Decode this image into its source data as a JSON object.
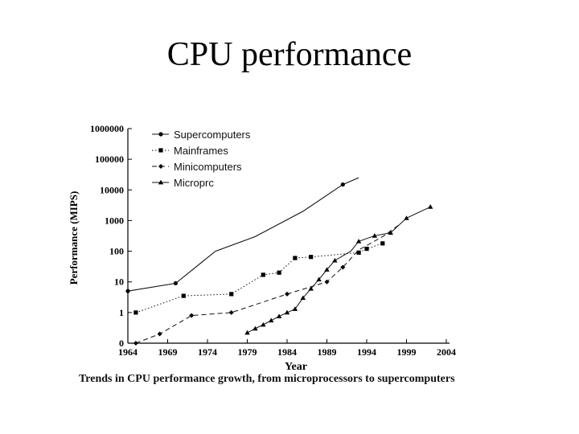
{
  "slide": {
    "title": "CPU performance",
    "caption": "Trends in CPU performance growth, from microprocessors to supercomputers"
  },
  "chart_data": {
    "type": "line",
    "xlabel": "Year",
    "ylabel": "Performance (MIPS)",
    "xlim": [
      1964,
      2004
    ],
    "x_ticks": [
      1964,
      1969,
      1974,
      1979,
      1984,
      1989,
      1994,
      1999,
      2004
    ],
    "y_scale": "log",
    "y_ticks": [
      {
        "value": 0,
        "label": "0"
      },
      {
        "value": 1,
        "label": "1"
      },
      {
        "value": 10,
        "label": "10"
      },
      {
        "value": 100,
        "label": "100"
      },
      {
        "value": 1000,
        "label": "1000"
      },
      {
        "value": 10000,
        "label": "10000"
      },
      {
        "value": 100000,
        "label": "100000"
      },
      {
        "value": 1000000,
        "label": "1000000"
      }
    ],
    "legend_position": "top-left",
    "series": [
      {
        "name": "Supercomputers",
        "line_style": "solid",
        "marker": "circle",
        "points": [
          [
            1964,
            5
          ],
          [
            1970,
            9
          ],
          [
            1975,
            100
          ],
          [
            1980,
            300
          ],
          [
            1986,
            2000
          ],
          [
            1991,
            15000
          ],
          [
            1993,
            25000
          ]
        ],
        "markers": [
          [
            1964,
            5
          ],
          [
            1970,
            9
          ],
          [
            1991,
            15000
          ]
        ]
      },
      {
        "name": "Mainframes",
        "line_style": "dotted",
        "marker": "square",
        "points": [
          [
            1965,
            1
          ],
          [
            1971,
            3.5
          ],
          [
            1977,
            4
          ],
          [
            1981,
            17
          ],
          [
            1983,
            20
          ],
          [
            1985,
            60
          ],
          [
            1987,
            65
          ],
          [
            1993,
            90
          ],
          [
            1994,
            120
          ],
          [
            1996,
            180
          ]
        ],
        "markers": [
          [
            1965,
            1
          ],
          [
            1971,
            3.5
          ],
          [
            1977,
            4
          ],
          [
            1981,
            17
          ],
          [
            1983,
            20
          ],
          [
            1985,
            60
          ],
          [
            1987,
            65
          ],
          [
            1993,
            90
          ],
          [
            1994,
            120
          ],
          [
            1996,
            180
          ]
        ]
      },
      {
        "name": "Minicomputers",
        "line_style": "dashed",
        "marker": "diamond",
        "points": [
          [
            1965,
            0.1
          ],
          [
            1968,
            0.2
          ],
          [
            1972,
            0.8
          ],
          [
            1977,
            1
          ],
          [
            1984,
            4
          ],
          [
            1989,
            10
          ],
          [
            1991,
            30
          ],
          [
            1993,
            110
          ],
          [
            1996,
            300
          ],
          [
            1998,
            700
          ]
        ],
        "markers": [
          [
            1965,
            0.1
          ],
          [
            1968,
            0.2
          ],
          [
            1972,
            0.8
          ],
          [
            1977,
            1
          ],
          [
            1984,
            4
          ],
          [
            1989,
            10
          ],
          [
            1991,
            30
          ]
        ]
      },
      {
        "name": "Microprc",
        "line_style": "solid-thin",
        "marker": "triangle",
        "points": [
          [
            1979,
            0.22
          ],
          [
            1980,
            0.3
          ],
          [
            1981,
            0.4
          ],
          [
            1982,
            0.55
          ],
          [
            1983,
            0.75
          ],
          [
            1984,
            1
          ],
          [
            1985,
            1.3
          ],
          [
            1986,
            3
          ],
          [
            1987,
            6
          ],
          [
            1988,
            12
          ],
          [
            1989,
            25
          ],
          [
            1990,
            50
          ],
          [
            1992,
            100
          ],
          [
            1993,
            210
          ],
          [
            1995,
            320
          ],
          [
            1997,
            400
          ],
          [
            1999,
            1200
          ],
          [
            2002,
            2800
          ]
        ],
        "markers": [
          [
            1979,
            0.22
          ],
          [
            1980,
            0.3
          ],
          [
            1981,
            0.4
          ],
          [
            1982,
            0.55
          ],
          [
            1983,
            0.75
          ],
          [
            1984,
            1
          ],
          [
            1985,
            1.3
          ],
          [
            1986,
            3
          ],
          [
            1987,
            6
          ],
          [
            1988,
            12
          ],
          [
            1989,
            25
          ],
          [
            1990,
            50
          ],
          [
            1993,
            210
          ],
          [
            1995,
            320
          ],
          [
            1997,
            400
          ],
          [
            1999,
            1200
          ],
          [
            2002,
            2800
          ]
        ]
      }
    ]
  }
}
